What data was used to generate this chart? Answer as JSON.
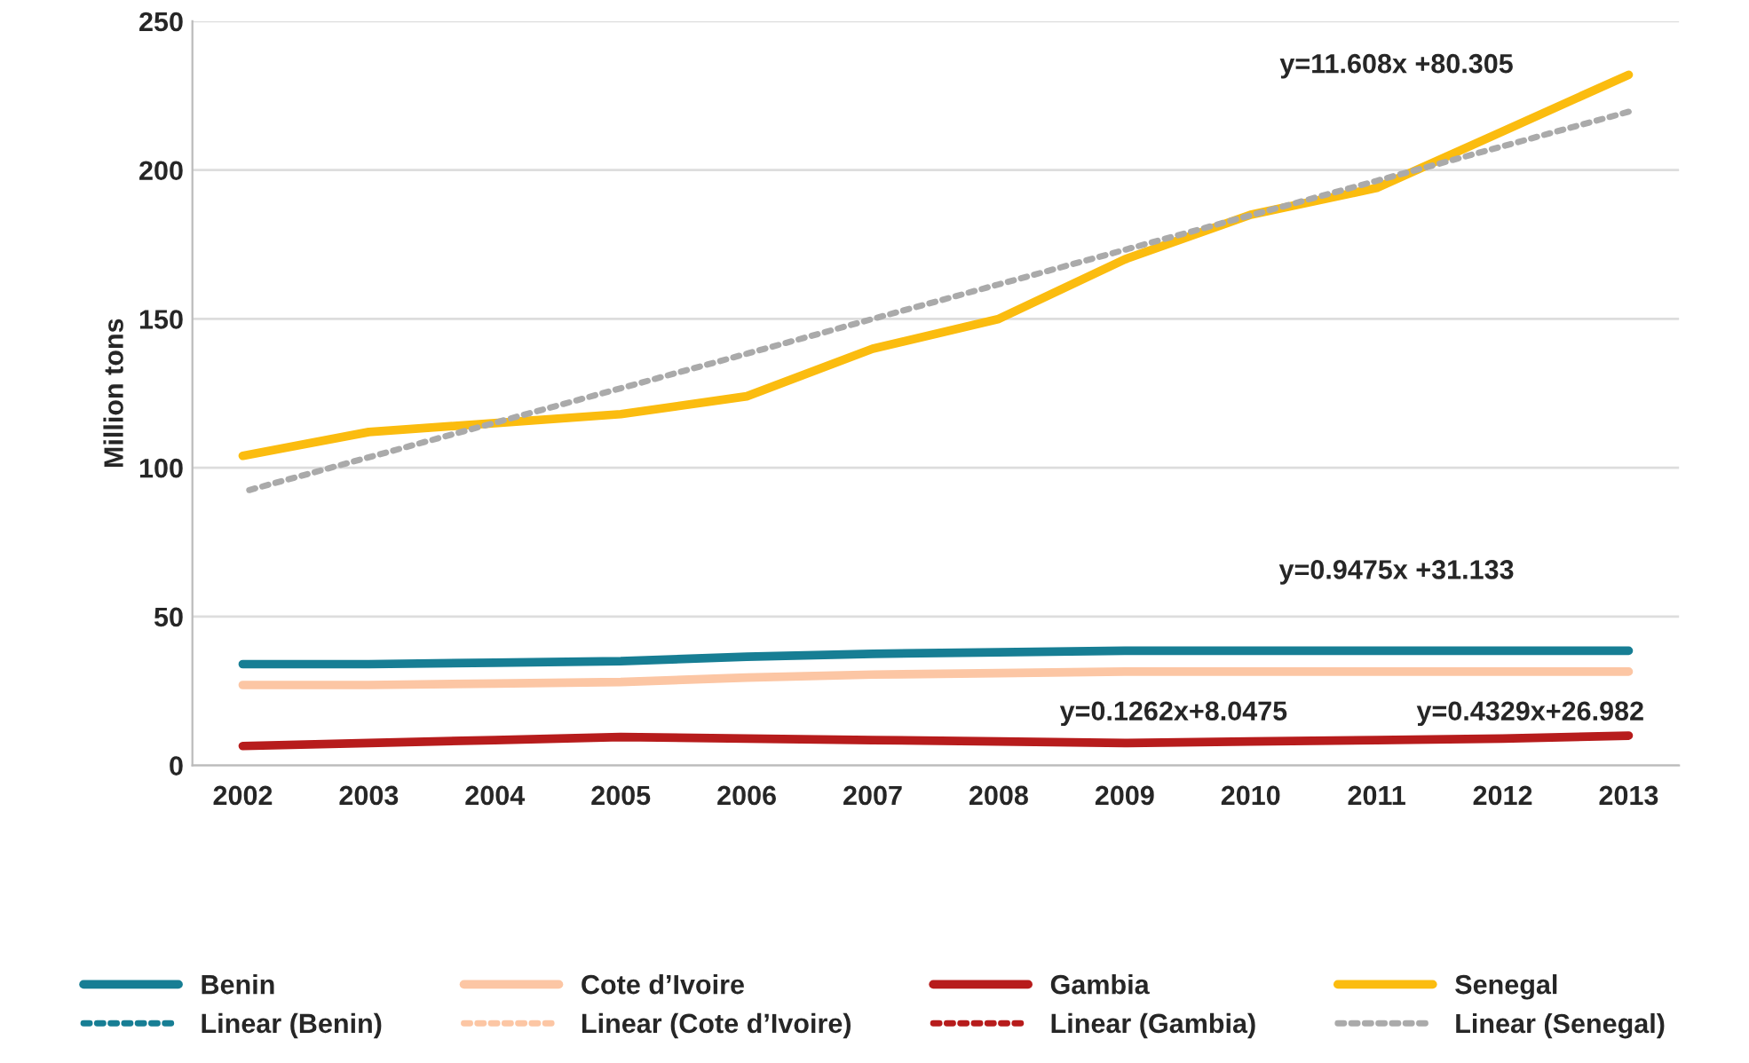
{
  "chart_data": {
    "type": "line",
    "ylabel": "Million tons",
    "categories": [
      "2002",
      "2003",
      "2004",
      "2005",
      "2006",
      "2007",
      "2008",
      "2009",
      "2010",
      "2011",
      "2012",
      "2013"
    ],
    "series": [
      {
        "name": "Benin",
        "color": "#177e94",
        "values": [
          34,
          34,
          34.5,
          35,
          36.5,
          37.5,
          38,
          38.5,
          38.5,
          38.5,
          38.5,
          38.5
        ]
      },
      {
        "name": "Cote d’Ivoire",
        "color": "#fcc6a4",
        "values": [
          27,
          27,
          27.5,
          28,
          29.5,
          30.5,
          31,
          31.5,
          31.5,
          31.5,
          31.5,
          31.5
        ]
      },
      {
        "name": "Gambia",
        "color": "#b71c1c",
        "values": [
          6.5,
          7.5,
          8.5,
          9.5,
          9,
          8.5,
          8,
          7.5,
          8,
          8.5,
          9,
          10
        ]
      },
      {
        "name": "Senegal",
        "color": "#fbbc0f",
        "values": [
          104,
          112,
          115,
          118,
          124,
          140,
          150,
          170,
          185,
          194,
          213,
          232
        ]
      },
      {
        "name": "Linear (Benin)",
        "color": "#177e94",
        "line_style": "dotted",
        "values": [
          null,
          null,
          null,
          null,
          null,
          null,
          null,
          null,
          null,
          null,
          null,
          null
        ]
      },
      {
        "name": "Linear (Cote d’Ivoire)",
        "color": "#fcc6a4",
        "line_style": "dotted",
        "values": [
          null,
          null,
          null,
          null,
          null,
          null,
          null,
          null,
          null,
          null,
          null,
          null
        ]
      },
      {
        "name": "Linear (Gambia)",
        "color": "#b71c1c",
        "line_style": "dotted",
        "values": [
          null,
          null,
          null,
          null,
          null,
          null,
          null,
          null,
          null,
          null,
          null,
          null
        ]
      },
      {
        "name": "Linear (Senegal)",
        "color": "#aaaaaa",
        "line_style": "dotted",
        "values": [
          91.9,
          103.5,
          115.1,
          126.7,
          138.3,
          150.0,
          161.6,
          173.2,
          184.8,
          196.4,
          208.0,
          219.6
        ]
      }
    ],
    "annotations": [
      "y=11.608x +80.305",
      "y=0.9475x +31.133",
      "y=0.1262x+8.0475",
      "y=0.4329x+26.982"
    ],
    "ylim": [
      0,
      250
    ],
    "yticks": [
      0,
      50,
      100,
      150,
      200,
      250
    ],
    "grid": "y",
    "legend": "bottom",
    "line_style": "solid",
    "marker": "none"
  }
}
